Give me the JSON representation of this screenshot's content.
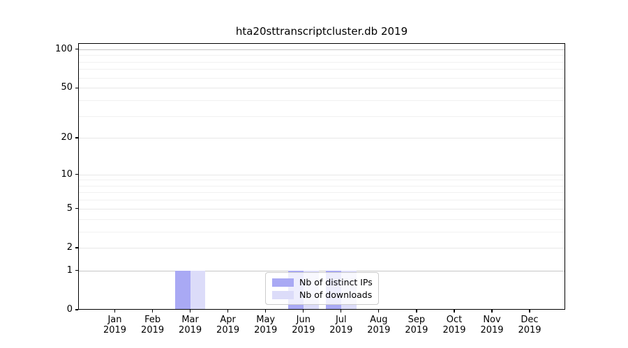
{
  "chart_data": {
    "type": "bar",
    "title": "hta20sttranscriptcluster.db 2019",
    "categories": [
      "Jan 2019",
      "Feb 2019",
      "Mar 2019",
      "Apr 2019",
      "May 2019",
      "Jun 2019",
      "Jul 2019",
      "Aug 2019",
      "Sep 2019",
      "Oct 2019",
      "Nov 2019",
      "Dec 2019"
    ],
    "series": [
      {
        "name": "Nb of distinct IPs",
        "color": "#a9a9f4",
        "values": [
          0,
          0,
          1,
          0,
          0,
          1,
          1,
          0,
          0,
          0,
          0,
          0
        ]
      },
      {
        "name": "Nb of downloads",
        "color": "#dcdcf9",
        "values": [
          0,
          0,
          1,
          0,
          0,
          1,
          1,
          0,
          0,
          0,
          0,
          0
        ]
      }
    ],
    "yscale": "log1p",
    "ylim": [
      0,
      110
    ],
    "y_ticks": [
      0,
      1,
      2,
      5,
      10,
      20,
      50,
      100
    ],
    "y_minor_gridlines": [
      3,
      4,
      6,
      7,
      8,
      9,
      30,
      40,
      60,
      70,
      80,
      90
    ],
    "y_emphasized_gridlines": [
      1,
      100
    ],
    "grid": true,
    "legend": {
      "position": "lower center",
      "entries": [
        "Nb of distinct IPs",
        "Nb of downloads"
      ]
    }
  }
}
